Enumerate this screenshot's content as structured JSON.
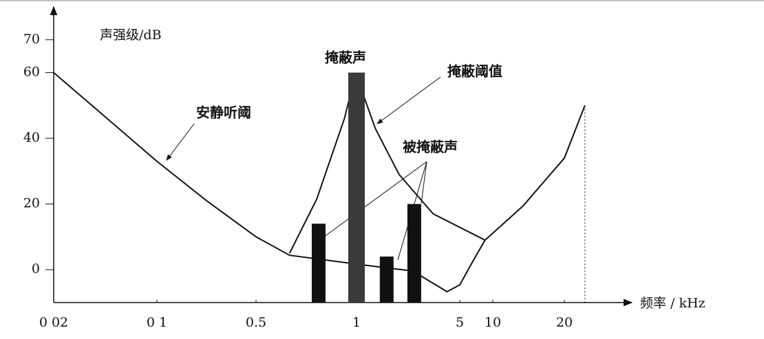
{
  "chart_data": {
    "type": "line",
    "y_label": "声强级/dB",
    "x_label": "频率 / kHz",
    "log_x": true,
    "ylim": [
      -10,
      80
    ],
    "yticks": [
      0,
      20,
      40,
      60,
      70
    ],
    "xlim": [
      0.02,
      30
    ],
    "xticks": [
      {
        "value": 0.02,
        "label": "0 02"
      },
      {
        "value": 0.1,
        "label": "0 1"
      },
      0.5,
      1,
      5,
      10,
      20
    ],
    "annotations": [
      "掩蔽声",
      "掩蔽阈值",
      "安静听阈",
      "被掩蔽声"
    ],
    "series": [
      {
        "type": "line",
        "color": "#111",
        "x": [
          0.02,
          0.1,
          0.224,
          0.5,
          0.63,
          1,
          2.4,
          4.1,
          5,
          6.9,
          8.5,
          13.4,
          20,
          24.4
        ],
        "values": [
          60,
          33,
          21,
          10,
          4.4,
          1.7,
          -0.4,
          -6.7,
          -4.6,
          3.8,
          9,
          19.4,
          34,
          50
        ]
      },
      {
        "type": "line",
        "color": "#111",
        "x": [
          0.63,
          0.76,
          0.92,
          0.99,
          1,
          1.34,
          1.94,
          3.3,
          8.5
        ],
        "values": [
          5,
          21.5,
          46,
          59,
          59,
          43,
          29,
          17,
          9
        ]
      },
      {
        "type": "bar",
        "colors": [
          "#111",
          "#3a3a3a",
          "#111",
          "#111"
        ],
        "x": [
          0.77,
          1,
          1.6,
          2.46
        ],
        "values": [
          14,
          60,
          4,
          20
        ]
      }
    ]
  }
}
